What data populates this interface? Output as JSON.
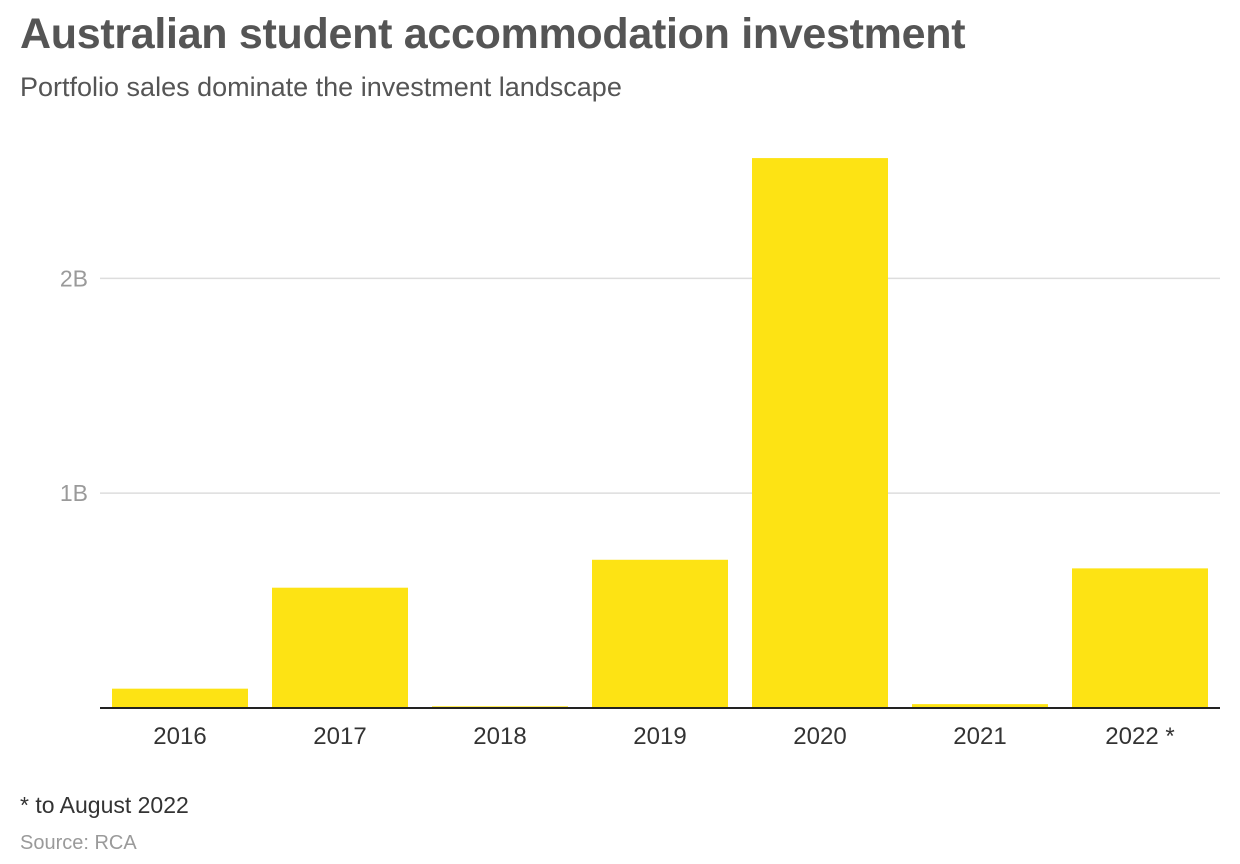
{
  "chart_data": {
    "type": "bar",
    "title": "Australian student accommodation investment",
    "subtitle": "Portfolio sales dominate the investment landscape",
    "categories": [
      "2016",
      "2017",
      "2018",
      "2019",
      "2020",
      "2021",
      "2022 *"
    ],
    "values": [
      90000000,
      560000000,
      8000000,
      690000000,
      2560000000,
      18000000,
      650000000
    ],
    "ylim": [
      0,
      2700000000
    ],
    "yticks": [
      {
        "value": 1000000000,
        "label": "1B"
      },
      {
        "value": 2000000000,
        "label": "2B"
      }
    ],
    "xlabel": "",
    "ylabel": "",
    "grid": true,
    "bar_color": "#FDE314",
    "gridline_color": "#dddddd",
    "baseline_color": "#222222",
    "footnote": "* to August 2022",
    "source": "Source: RCA"
  }
}
